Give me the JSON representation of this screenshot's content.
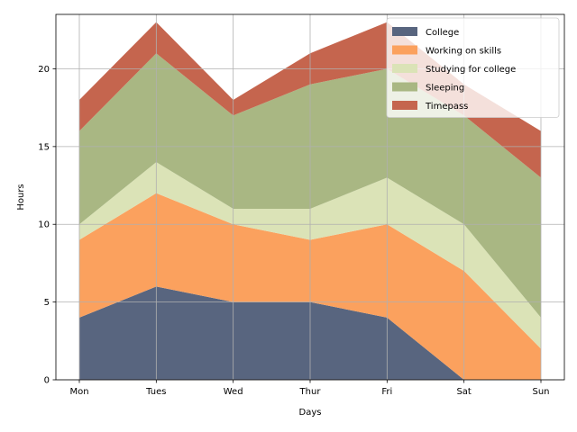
{
  "chart_data": {
    "type": "area",
    "stacked": true,
    "categories": [
      "Mon",
      "Tues",
      "Wed",
      "Thur",
      "Fri",
      "Sat",
      "Sun"
    ],
    "series": [
      {
        "name": "College",
        "color": "#58657f",
        "values": [
          4,
          6,
          5,
          5,
          4,
          0,
          0
        ]
      },
      {
        "name": "Working on skills",
        "color": "#fba15e",
        "values": [
          5,
          6,
          5,
          4,
          6,
          7,
          2
        ]
      },
      {
        "name": "Studying for college",
        "color": "#dbe3b7",
        "values": [
          1,
          2,
          1,
          2,
          3,
          3,
          2
        ]
      },
      {
        "name": "Sleeping",
        "color": "#a9b783",
        "values": [
          6,
          7,
          6,
          8,
          7,
          7,
          9
        ]
      },
      {
        "name": "Timepass",
        "color": "#c5654e",
        "values": [
          2,
          2,
          1,
          2,
          3,
          2,
          3
        ]
      }
    ],
    "xlabel": "Days",
    "ylabel": "Hours",
    "ylim": [
      0,
      23.5
    ],
    "yticks": [
      0,
      5,
      10,
      15,
      20
    ],
    "grid": true,
    "legend": "top-right"
  }
}
